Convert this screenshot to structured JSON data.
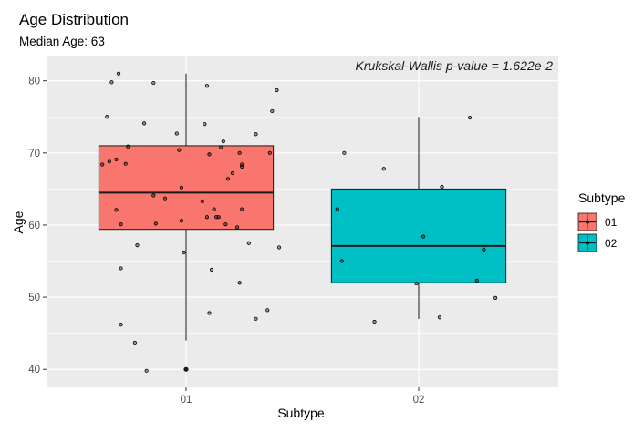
{
  "chart_data": {
    "type": "boxplot",
    "title": "Age Distribution",
    "subtitle": "Median Age: 63",
    "annotation": "Krukskal-Wallis p-value = 1.622e-2",
    "xlabel": "Subtype",
    "ylabel": "Age",
    "ylim": [
      37.5,
      83.5
    ],
    "yticks": [
      40,
      50,
      60,
      70,
      80
    ],
    "categories": [
      "01",
      "02"
    ],
    "grid": true,
    "legend": {
      "title": "Subtype",
      "position": "right",
      "entries": [
        {
          "label": "01",
          "color": "#F8766D"
        },
        {
          "label": "02",
          "color": "#00BFC4"
        }
      ]
    },
    "boxes": [
      {
        "category": "01",
        "color": "#F8766D",
        "q1": 59.4,
        "median": 64.5,
        "q3": 71.0,
        "whisker_low": 44.0,
        "whisker_high": 81.0,
        "outliers": [
          40.0
        ]
      },
      {
        "category": "02",
        "color": "#00BFC4",
        "q1": 52.0,
        "median": 57.1,
        "q3": 65.0,
        "whisker_low": 47.0,
        "whisker_high": 75.0,
        "outliers": []
      }
    ],
    "points": [
      {
        "category": "01",
        "x": 0.64,
        "y": 68.4
      },
      {
        "category": "01",
        "x": 0.66,
        "y": 75.0
      },
      {
        "category": "01",
        "x": 0.67,
        "y": 68.8
      },
      {
        "category": "01",
        "x": 0.68,
        "y": 79.8
      },
      {
        "category": "01",
        "x": 0.7,
        "y": 62.1
      },
      {
        "category": "01",
        "x": 0.7,
        "y": 69.1
      },
      {
        "category": "01",
        "x": 0.71,
        "y": 81.0
      },
      {
        "category": "01",
        "x": 0.72,
        "y": 60.1
      },
      {
        "category": "01",
        "x": 0.72,
        "y": 54.0
      },
      {
        "category": "01",
        "x": 0.72,
        "y": 46.2
      },
      {
        "category": "01",
        "x": 0.74,
        "y": 68.5
      },
      {
        "category": "01",
        "x": 0.75,
        "y": 70.9
      },
      {
        "category": "01",
        "x": 0.78,
        "y": 43.7
      },
      {
        "category": "01",
        "x": 0.79,
        "y": 57.2
      },
      {
        "category": "01",
        "x": 0.82,
        "y": 74.1
      },
      {
        "category": "01",
        "x": 0.83,
        "y": 39.8
      },
      {
        "category": "01",
        "x": 0.86,
        "y": 64.1
      },
      {
        "category": "01",
        "x": 0.86,
        "y": 79.7
      },
      {
        "category": "01",
        "x": 0.87,
        "y": 60.2
      },
      {
        "category": "01",
        "x": 0.91,
        "y": 63.7
      },
      {
        "category": "01",
        "x": 0.96,
        "y": 72.7
      },
      {
        "category": "01",
        "x": 0.97,
        "y": 70.4
      },
      {
        "category": "01",
        "x": 0.98,
        "y": 65.2
      },
      {
        "category": "01",
        "x": 0.98,
        "y": 60.6
      },
      {
        "category": "01",
        "x": 0.99,
        "y": 56.2
      },
      {
        "category": "01",
        "x": 1.07,
        "y": 63.3
      },
      {
        "category": "01",
        "x": 1.08,
        "y": 74.0
      },
      {
        "category": "01",
        "x": 1.09,
        "y": 79.3
      },
      {
        "category": "01",
        "x": 1.09,
        "y": 61.1
      },
      {
        "category": "01",
        "x": 1.1,
        "y": 47.8
      },
      {
        "category": "01",
        "x": 1.1,
        "y": 69.8
      },
      {
        "category": "01",
        "x": 1.11,
        "y": 53.8
      },
      {
        "category": "01",
        "x": 1.12,
        "y": 62.2
      },
      {
        "category": "01",
        "x": 1.13,
        "y": 61.1
      },
      {
        "category": "01",
        "x": 1.14,
        "y": 61.1
      },
      {
        "category": "01",
        "x": 1.15,
        "y": 70.8
      },
      {
        "category": "01",
        "x": 1.16,
        "y": 71.6
      },
      {
        "category": "01",
        "x": 1.17,
        "y": 60.1
      },
      {
        "category": "01",
        "x": 1.18,
        "y": 66.4
      },
      {
        "category": "01",
        "x": 1.2,
        "y": 67.2
      },
      {
        "category": "01",
        "x": 1.22,
        "y": 59.7
      },
      {
        "category": "01",
        "x": 1.23,
        "y": 52.0
      },
      {
        "category": "01",
        "x": 1.23,
        "y": 70.0
      },
      {
        "category": "01",
        "x": 1.24,
        "y": 68.4
      },
      {
        "category": "01",
        "x": 1.24,
        "y": 68.1
      },
      {
        "category": "01",
        "x": 1.24,
        "y": 62.2
      },
      {
        "category": "01",
        "x": 1.27,
        "y": 57.5
      },
      {
        "category": "01",
        "x": 1.3,
        "y": 47.0
      },
      {
        "category": "01",
        "x": 1.3,
        "y": 72.6
      },
      {
        "category": "01",
        "x": 1.35,
        "y": 48.2
      },
      {
        "category": "01",
        "x": 1.36,
        "y": 70.0
      },
      {
        "category": "01",
        "x": 1.37,
        "y": 75.8
      },
      {
        "category": "01",
        "x": 1.39,
        "y": 78.7
      },
      {
        "category": "01",
        "x": 1.4,
        "y": 56.9
      },
      {
        "category": "02",
        "x": 1.65,
        "y": 62.2
      },
      {
        "category": "02",
        "x": 1.67,
        "y": 55.0
      },
      {
        "category": "02",
        "x": 1.68,
        "y": 70.0
      },
      {
        "category": "02",
        "x": 1.81,
        "y": 46.6
      },
      {
        "category": "02",
        "x": 1.85,
        "y": 67.8
      },
      {
        "category": "02",
        "x": 1.99,
        "y": 51.9
      },
      {
        "category": "02",
        "x": 2.02,
        "y": 58.4
      },
      {
        "category": "02",
        "x": 2.09,
        "y": 47.2
      },
      {
        "category": "02",
        "x": 2.1,
        "y": 65.3
      },
      {
        "category": "02",
        "x": 2.22,
        "y": 74.9
      },
      {
        "category": "02",
        "x": 2.25,
        "y": 52.3
      },
      {
        "category": "02",
        "x": 2.28,
        "y": 56.6
      },
      {
        "category": "02",
        "x": 2.33,
        "y": 49.9
      }
    ]
  }
}
